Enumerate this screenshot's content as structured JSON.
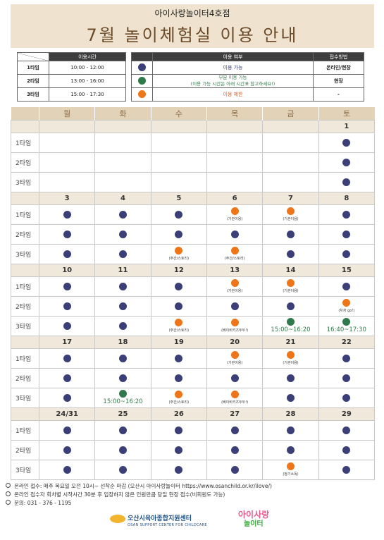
{
  "header": {
    "subtitle": "아이사랑놀이터4호점",
    "title": "7월 놀이체험실 이용 안내"
  },
  "time_table": {
    "header": "이용시간",
    "rows": [
      {
        "label": "1타임",
        "time": "10:00 - 12:00"
      },
      {
        "label": "2타임",
        "time": "13:00 - 16:00"
      },
      {
        "label": "3타임",
        "time": "15:00 - 17:30"
      }
    ]
  },
  "legend": {
    "header_use": "이용 여부",
    "header_method": "접수방법",
    "rows": [
      {
        "color": "blue",
        "text": "이용 가능",
        "method": "온라인/현장"
      },
      {
        "color": "green",
        "text": "부분 이용 가능",
        "text2": "(이용 가능 시간은 아래 시간표 참고하세요!)",
        "method": "현장"
      },
      {
        "color": "orange",
        "text": "이용 제한",
        "method": "-"
      }
    ]
  },
  "calendar": {
    "days": [
      "월",
      "화",
      "수",
      "목",
      "금",
      "토"
    ],
    "slot_labels": [
      "1타임",
      "2타임",
      "3타임"
    ],
    "weeks": [
      {
        "dates": [
          "",
          "",
          "",
          "",
          "",
          "1"
        ],
        "slots": [
          [
            "",
            "",
            "",
            "",
            "",
            "blue"
          ],
          [
            "",
            "",
            "",
            "",
            "",
            "blue"
          ],
          [
            "",
            "",
            "",
            "",
            "",
            "blue"
          ]
        ]
      },
      {
        "dates": [
          "3",
          "4",
          "5",
          "6",
          "7",
          "8"
        ],
        "slots": [
          [
            "blue",
            "blue",
            "blue",
            "orange:(기관이용)",
            "orange:(기관이용)",
            "blue"
          ],
          [
            "blue",
            "blue",
            "blue",
            "blue",
            "blue",
            "blue"
          ],
          [
            "blue",
            "blue",
            "orange:(주간/스토리)",
            "orange:(주간/스토리)",
            "blue",
            "blue"
          ]
        ]
      },
      {
        "dates": [
          "10",
          "11",
          "12",
          "13",
          "14",
          "15"
        ],
        "slots": [
          [
            "blue",
            "blue",
            "blue",
            "orange:(기관이용)",
            "orange:(기관이용)",
            "blue"
          ],
          [
            "blue",
            "blue",
            "blue",
            "blue",
            "blue",
            "orange:(차차 go!)"
          ],
          [
            "blue",
            "blue",
            "orange:(주간/스토리)",
            "orange:(베이비키즈두두!)",
            "green:15:00~16:20",
            "green:16:40~17:30"
          ]
        ]
      },
      {
        "dates": [
          "17",
          "18",
          "19",
          "20",
          "21",
          "22"
        ],
        "slots": [
          [
            "blue",
            "blue",
            "blue",
            "orange:(기관이용)",
            "orange:(기관이용)",
            "blue"
          ],
          [
            "blue",
            "blue",
            "blue",
            "blue",
            "blue",
            "blue"
          ],
          [
            "blue",
            "green:15:00~16:20",
            "orange:(주간/스토리)",
            "orange:(베이비키즈두두!)",
            "blue",
            "blue"
          ]
        ]
      },
      {
        "dates": [
          "24/31",
          "25",
          "26",
          "27",
          "28",
          "29"
        ],
        "slots": [
          [
            "blue",
            "blue",
            "blue",
            "blue",
            "blue",
            "blue"
          ],
          [
            "blue",
            "blue",
            "blue",
            "blue",
            "blue",
            "blue"
          ],
          [
            "blue",
            "blue",
            "blue",
            "blue",
            "orange:(정기소독)",
            "blue"
          ]
        ]
      }
    ]
  },
  "footer": [
    "온라인 접수: 매주 목요일 오전 10시~ 선착순 마감 (오산시 아이사랑놀이터 https://www.osanchild.or.kr/ilove/)",
    "온라인 접수자 회차별 시작시간 30분 후 입장하지 않은 인원만큼 당일 현장 접수(비회원도 가능)",
    "문의: 031 - 376 - 1195"
  ],
  "logos": {
    "org": "오산시육아종합지원센터",
    "org_en": "OSAN SUPPORT CENTER FOR CHILDCARE",
    "brand_top": "아이사랑",
    "brand_bottom": "놀이터"
  },
  "colors": {
    "blue": "#3a3f78",
    "green": "#2f7a4a",
    "orange": "#ee7619",
    "header_bg": "#efe3cf"
  }
}
